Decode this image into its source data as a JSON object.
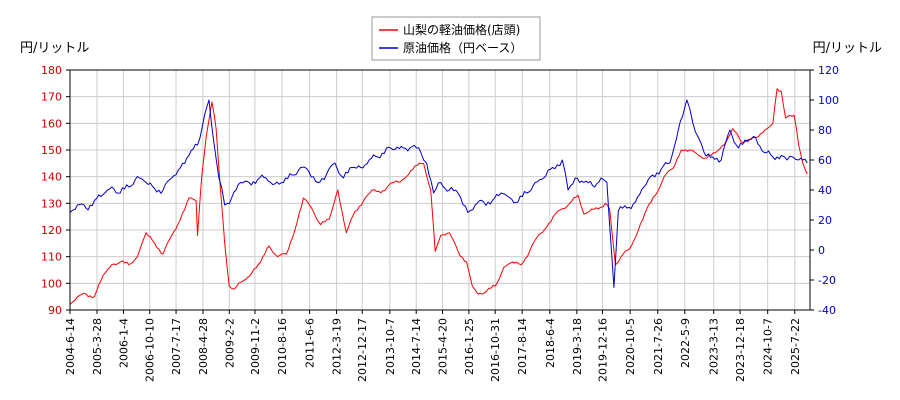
{
  "chart_data": {
    "type": "line",
    "left_unit_label": "円/リットル",
    "right_unit_label": "円/リットル",
    "left_axis": {
      "min": 90,
      "max": 180,
      "ticks": [
        90,
        100,
        110,
        120,
        130,
        140,
        150,
        160,
        170,
        180
      ],
      "color": "#cc0000"
    },
    "right_axis": {
      "min": -40,
      "max": 120,
      "ticks": [
        -40,
        -20,
        0,
        20,
        40,
        60,
        80,
        100,
        120
      ],
      "color": "#0000cc"
    },
    "x_tick_labels": [
      "2004-6-14",
      "2005-3-28",
      "2006-1-4",
      "2006-10-10",
      "2007-7-17",
      "2008-4-28",
      "2009-2-2",
      "2009-11-2",
      "2010-8-16",
      "2011-6-6",
      "2012-3-19",
      "2012-12-17",
      "2013-10-7",
      "2014-7-14",
      "2015-4-20",
      "2016-1-25",
      "2016-10-31",
      "2017-8-14",
      "2018-6-4",
      "2019-3-18",
      "2019-12-16",
      "2020-10-5",
      "2021-7-26",
      "2022-5-9",
      "2023-3-13",
      "2023-12-18",
      "2024-10-7",
      "2025-7-22"
    ],
    "x_range": [
      "2004-06-14",
      "2025-12-31"
    ],
    "grid": true,
    "legend_position": "top-center",
    "series": [
      {
        "name": "山梨の軽油価格(店頭)",
        "axis": "left",
        "color": "#ff0000",
        "points": [
          [
            "2004-06-14",
            92
          ],
          [
            "2004-09-01",
            95
          ],
          [
            "2004-12-01",
            96
          ],
          [
            "2005-03-01",
            95
          ],
          [
            "2005-06-01",
            103
          ],
          [
            "2005-09-01",
            107
          ],
          [
            "2005-12-01",
            108
          ],
          [
            "2006-03-01",
            107
          ],
          [
            "2006-06-01",
            110
          ],
          [
            "2006-09-01",
            119
          ],
          [
            "2006-12-01",
            115
          ],
          [
            "2007-03-01",
            111
          ],
          [
            "2007-06-01",
            118
          ],
          [
            "2007-09-01",
            124
          ],
          [
            "2007-12-01",
            132
          ],
          [
            "2008-02-15",
            131
          ],
          [
            "2008-03-01",
            118
          ],
          [
            "2008-04-15",
            140
          ],
          [
            "2008-06-01",
            155
          ],
          [
            "2008-08-01",
            168
          ],
          [
            "2008-09-15",
            158
          ],
          [
            "2008-11-01",
            135
          ],
          [
            "2008-12-15",
            115
          ],
          [
            "2009-02-01",
            99
          ],
          [
            "2009-04-01",
            98
          ],
          [
            "2009-07-01",
            101
          ],
          [
            "2009-10-01",
            104
          ],
          [
            "2010-01-01",
            108
          ],
          [
            "2010-04-01",
            114
          ],
          [
            "2010-07-01",
            110
          ],
          [
            "2010-10-01",
            111
          ],
          [
            "2011-01-01",
            120
          ],
          [
            "2011-04-01",
            132
          ],
          [
            "2011-07-01",
            128
          ],
          [
            "2011-10-01",
            122
          ],
          [
            "2012-01-01",
            124
          ],
          [
            "2012-04-01",
            135
          ],
          [
            "2012-07-01",
            119
          ],
          [
            "2012-10-01",
            127
          ],
          [
            "2013-01-01",
            131
          ],
          [
            "2013-04-01",
            135
          ],
          [
            "2013-07-01",
            134
          ],
          [
            "2013-10-01",
            137
          ],
          [
            "2014-01-01",
            138
          ],
          [
            "2014-04-01",
            140
          ],
          [
            "2014-07-01",
            144
          ],
          [
            "2014-10-01",
            145
          ],
          [
            "2014-12-15",
            135
          ],
          [
            "2015-02-01",
            112
          ],
          [
            "2015-04-01",
            118
          ],
          [
            "2015-07-01",
            119
          ],
          [
            "2015-10-01",
            112
          ],
          [
            "2016-01-01",
            108
          ],
          [
            "2016-03-01",
            99
          ],
          [
            "2016-05-01",
            96
          ],
          [
            "2016-08-01",
            97
          ],
          [
            "2016-11-01",
            99
          ],
          [
            "2017-02-01",
            106
          ],
          [
            "2017-05-01",
            108
          ],
          [
            "2017-08-01",
            107
          ],
          [
            "2017-11-01",
            112
          ],
          [
            "2018-02-01",
            118
          ],
          [
            "2018-05-01",
            121
          ],
          [
            "2018-08-01",
            126
          ],
          [
            "2018-10-15",
            128
          ],
          [
            "2019-01-01",
            130
          ],
          [
            "2019-04-01",
            133
          ],
          [
            "2019-06-01",
            126
          ],
          [
            "2019-08-01",
            127
          ],
          [
            "2019-11-01",
            128
          ],
          [
            "2020-01-15",
            130
          ],
          [
            "2020-03-01",
            128
          ],
          [
            "2020-05-01",
            107
          ],
          [
            "2020-07-01",
            110
          ],
          [
            "2020-10-01",
            113
          ],
          [
            "2021-01-01",
            120
          ],
          [
            "2021-04-01",
            128
          ],
          [
            "2021-07-01",
            133
          ],
          [
            "2021-10-01",
            140
          ],
          [
            "2022-01-01",
            143
          ],
          [
            "2022-04-01",
            150
          ],
          [
            "2022-07-01",
            150
          ],
          [
            "2022-10-01",
            148
          ],
          [
            "2023-01-01",
            147
          ],
          [
            "2023-04-01",
            149
          ],
          [
            "2023-07-01",
            152
          ],
          [
            "2023-10-01",
            158
          ],
          [
            "2024-01-01",
            153
          ],
          [
            "2024-04-01",
            154
          ],
          [
            "2024-07-01",
            155
          ],
          [
            "2024-10-01",
            158
          ],
          [
            "2024-12-01",
            160
          ],
          [
            "2025-01-15",
            173
          ],
          [
            "2025-03-01",
            172
          ],
          [
            "2025-04-15",
            162
          ],
          [
            "2025-06-01",
            163
          ],
          [
            "2025-07-15",
            163
          ],
          [
            "2025-09-01",
            152
          ],
          [
            "2025-10-15",
            145
          ],
          [
            "2025-12-01",
            141
          ]
        ]
      },
      {
        "name": "原油価格（円ベース）",
        "axis": "right",
        "color": "#0000cc",
        "points": [
          [
            "2004-06-14",
            25
          ],
          [
            "2004-09-01",
            30
          ],
          [
            "2004-12-01",
            28
          ],
          [
            "2005-03-01",
            33
          ],
          [
            "2005-06-01",
            37
          ],
          [
            "2005-09-01",
            42
          ],
          [
            "2005-12-01",
            38
          ],
          [
            "2006-03-01",
            42
          ],
          [
            "2006-06-01",
            49
          ],
          [
            "2006-09-01",
            45
          ],
          [
            "2006-12-01",
            41
          ],
          [
            "2007-03-01",
            40
          ],
          [
            "2007-06-01",
            48
          ],
          [
            "2007-09-01",
            55
          ],
          [
            "2007-12-01",
            63
          ],
          [
            "2008-03-01",
            70
          ],
          [
            "2008-05-15",
            90
          ],
          [
            "2008-07-01",
            100
          ],
          [
            "2008-08-15",
            75
          ],
          [
            "2008-10-15",
            48
          ],
          [
            "2008-12-15",
            30
          ],
          [
            "2009-03-01",
            35
          ],
          [
            "2009-06-01",
            45
          ],
          [
            "2009-09-01",
            45
          ],
          [
            "2009-12-01",
            47
          ],
          [
            "2010-03-01",
            48
          ],
          [
            "2010-06-01",
            44
          ],
          [
            "2010-09-01",
            45
          ],
          [
            "2010-12-01",
            50
          ],
          [
            "2011-03-01",
            55
          ],
          [
            "2011-06-01",
            52
          ],
          [
            "2011-09-01",
            45
          ],
          [
            "2011-12-01",
            50
          ],
          [
            "2012-03-01",
            58
          ],
          [
            "2012-06-01",
            48
          ],
          [
            "2012-09-01",
            55
          ],
          [
            "2012-12-01",
            55
          ],
          [
            "2013-03-01",
            60
          ],
          [
            "2013-06-01",
            62
          ],
          [
            "2013-09-01",
            68
          ],
          [
            "2013-12-01",
            67
          ],
          [
            "2014-03-01",
            68
          ],
          [
            "2014-06-01",
            69
          ],
          [
            "2014-09-01",
            65
          ],
          [
            "2014-11-01",
            58
          ],
          [
            "2015-01-15",
            38
          ],
          [
            "2015-04-01",
            45
          ],
          [
            "2015-07-01",
            40
          ],
          [
            "2015-10-01",
            38
          ],
          [
            "2016-01-15",
            25
          ],
          [
            "2016-04-01",
            30
          ],
          [
            "2016-07-01",
            32
          ],
          [
            "2016-10-01",
            33
          ],
          [
            "2017-01-01",
            38
          ],
          [
            "2017-04-01",
            35
          ],
          [
            "2017-07-01",
            32
          ],
          [
            "2017-10-01",
            38
          ],
          [
            "2018-01-01",
            45
          ],
          [
            "2018-04-01",
            48
          ],
          [
            "2018-07-01",
            55
          ],
          [
            "2018-10-15",
            60
          ],
          [
            "2018-12-15",
            40
          ],
          [
            "2019-03-01",
            48
          ],
          [
            "2019-06-01",
            45
          ],
          [
            "2019-09-01",
            43
          ],
          [
            "2019-12-01",
            48
          ],
          [
            "2020-02-01",
            45
          ],
          [
            "2020-04-15",
            -25
          ],
          [
            "2020-06-01",
            26
          ],
          [
            "2020-09-01",
            28
          ],
          [
            "2020-12-01",
            32
          ],
          [
            "2021-03-01",
            42
          ],
          [
            "2021-06-01",
            50
          ],
          [
            "2021-09-01",
            54
          ],
          [
            "2021-12-01",
            58
          ],
          [
            "2022-03-01",
            80
          ],
          [
            "2022-06-01",
            100
          ],
          [
            "2022-08-01",
            85
          ],
          [
            "2022-10-01",
            75
          ],
          [
            "2022-12-01",
            65
          ],
          [
            "2023-03-01",
            62
          ],
          [
            "2023-06-01",
            60
          ],
          [
            "2023-09-01",
            80
          ],
          [
            "2023-12-01",
            68
          ],
          [
            "2024-03-01",
            73
          ],
          [
            "2024-06-01",
            75
          ],
          [
            "2024-09-01",
            65
          ],
          [
            "2024-12-01",
            62
          ],
          [
            "2025-03-01",
            63
          ],
          [
            "2025-05-01",
            60
          ],
          [
            "2025-07-01",
            62
          ],
          [
            "2025-09-01",
            60
          ],
          [
            "2025-12-01",
            58
          ]
        ]
      }
    ]
  }
}
